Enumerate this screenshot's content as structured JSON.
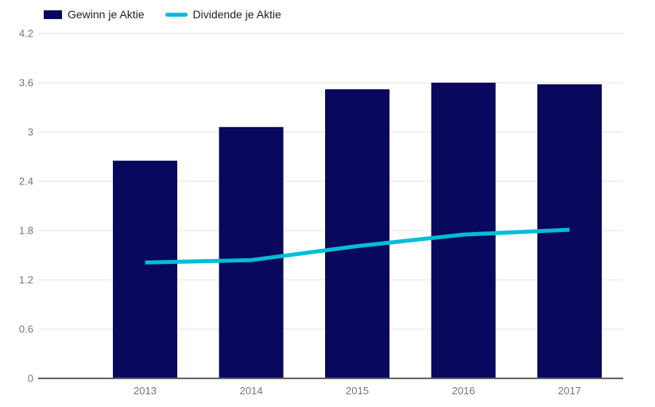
{
  "colors": {
    "bar": "#08085c",
    "line": "#00bed6",
    "grid": "#e9e9e9",
    "axis_line": "#616161",
    "tick_text": "#757575",
    "legend_text": "#222222",
    "background": "#ffffff"
  },
  "chart_data": {
    "type": "combo-bar-line",
    "title": "",
    "xlabel": "",
    "ylabel": "",
    "categories": [
      "2013",
      "2014",
      "2015",
      "2016",
      "2017"
    ],
    "series": [
      {
        "name": "Gewinn je Aktie",
        "type": "bar",
        "color": "#08085c",
        "values": [
          2.65,
          3.06,
          3.52,
          3.6,
          3.58
        ]
      },
      {
        "name": "Dividende je Aktie",
        "type": "line",
        "color": "#00bed6",
        "values": [
          1.41,
          1.44,
          1.61,
          1.75,
          1.81
        ]
      }
    ],
    "yticks": [
      "0",
      "0.6",
      "1.2",
      "1.8",
      "2.4",
      "3",
      "3.6",
      "4.2"
    ],
    "ytick_values": [
      0,
      0.6,
      1.2,
      1.8,
      2.4,
      3,
      3.6,
      4.2
    ],
    "ylim": [
      0,
      4.2
    ],
    "grid": true,
    "legend_position": "top-left"
  }
}
